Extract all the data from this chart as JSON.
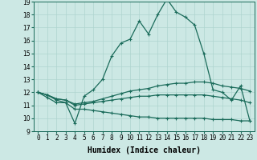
{
  "xlabel": "Humidex (Indice chaleur)",
  "ylabel": "",
  "bg_color": "#cce8e4",
  "line_color": "#1a6b5a",
  "grid_color": "#aed4cf",
  "xlim": [
    -0.5,
    23.5
  ],
  "ylim": [
    9,
    19
  ],
  "xticks": [
    0,
    1,
    2,
    3,
    4,
    5,
    6,
    7,
    8,
    9,
    10,
    11,
    12,
    13,
    14,
    15,
    16,
    17,
    18,
    19,
    20,
    21,
    22,
    23
  ],
  "yticks": [
    9,
    10,
    11,
    12,
    13,
    14,
    15,
    16,
    17,
    18,
    19
  ],
  "line1_x": [
    0,
    1,
    2,
    3,
    4,
    5,
    6,
    7,
    8,
    9,
    10,
    11,
    12,
    13,
    14,
    15,
    16,
    17,
    18,
    19,
    20,
    21,
    22,
    23
  ],
  "line1_y": [
    12.0,
    11.6,
    11.2,
    11.2,
    9.6,
    11.7,
    12.2,
    13.0,
    14.8,
    15.8,
    16.1,
    17.5,
    16.5,
    18.0,
    19.2,
    18.2,
    17.8,
    17.2,
    15.0,
    12.2,
    12.0,
    11.4,
    12.5,
    9.8
  ],
  "line2_x": [
    0,
    1,
    2,
    3,
    4,
    5,
    6,
    7,
    8,
    9,
    10,
    11,
    12,
    13,
    14,
    15,
    16,
    17,
    18,
    19,
    20,
    21,
    22,
    23
  ],
  "line2_y": [
    12.0,
    11.8,
    11.5,
    11.4,
    11.1,
    11.2,
    11.3,
    11.5,
    11.7,
    11.9,
    12.1,
    12.2,
    12.3,
    12.5,
    12.6,
    12.7,
    12.7,
    12.8,
    12.8,
    12.7,
    12.5,
    12.4,
    12.3,
    12.1
  ],
  "line3_x": [
    0,
    1,
    2,
    3,
    4,
    5,
    6,
    7,
    8,
    9,
    10,
    11,
    12,
    13,
    14,
    15,
    16,
    17,
    18,
    19,
    20,
    21,
    22,
    23
  ],
  "line3_y": [
    12.0,
    11.8,
    11.5,
    11.4,
    11.0,
    11.1,
    11.2,
    11.3,
    11.4,
    11.5,
    11.6,
    11.7,
    11.7,
    11.8,
    11.8,
    11.8,
    11.8,
    11.8,
    11.8,
    11.7,
    11.6,
    11.5,
    11.4,
    11.2
  ],
  "line4_x": [
    0,
    1,
    2,
    3,
    4,
    5,
    6,
    7,
    8,
    9,
    10,
    11,
    12,
    13,
    14,
    15,
    16,
    17,
    18,
    19,
    20,
    21,
    22,
    23
  ],
  "line4_y": [
    12.0,
    11.8,
    11.4,
    11.2,
    10.7,
    10.7,
    10.6,
    10.5,
    10.4,
    10.3,
    10.2,
    10.1,
    10.1,
    10.0,
    10.0,
    10.0,
    10.0,
    10.0,
    10.0,
    9.9,
    9.9,
    9.9,
    9.8,
    9.8
  ],
  "tick_fontsize": 5.5,
  "xlabel_fontsize": 7
}
